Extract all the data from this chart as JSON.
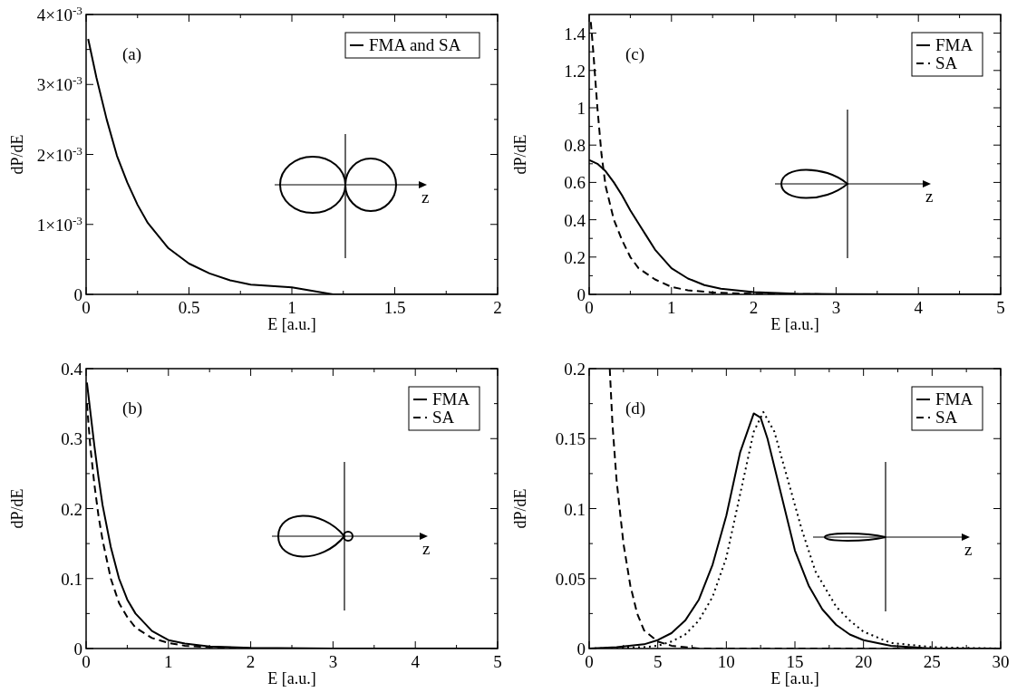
{
  "chart_data": [
    {
      "type": "line",
      "xlabel": "E [a.u.]",
      "ylabel": "dP/dE",
      "legend": "top right",
      "annotations": [
        "(a)",
        "z"
      ],
      "xlim": [
        0,
        2
      ],
      "ylim": [
        0,
        0.004
      ],
      "xticks": [
        0,
        {
          "value": 0.25,
          "label": null
        },
        0.5,
        {
          "value": 0.75,
          "label": null
        },
        1,
        {
          "value": 1.25,
          "label": null
        },
        1.5,
        {
          "value": 1.75,
          "label": null
        },
        2
      ],
      "yticks": [
        0,
        {
          "value": 0.0005,
          "label": null
        },
        {
          "value": 0.001,
          "label": "1×10$^{-3}$"
        },
        {
          "value": 0.0015,
          "label": null
        },
        {
          "value": 0.002,
          "label": "2×10$^{-3}$"
        },
        {
          "value": 0.0025,
          "label": null
        },
        {
          "value": 0.003,
          "label": "3×10$^{-3}$"
        },
        {
          "value": 0.0035,
          "label": null
        },
        {
          "value": 0.004,
          "label": "4×10$^{-3}$"
        }
      ],
      "series": [
        {
          "name": "FMA and SA",
          "color": "#000000",
          "line_style": "solid",
          "x": [
            0.01,
            0.05,
            0.1,
            0.15,
            0.2,
            0.25,
            0.3,
            0.4,
            0.5,
            0.6,
            0.7,
            0.8,
            1.0,
            1.2,
            1.5,
            2
          ],
          "values": [
            0.00365,
            0.0031,
            0.0025,
            0.00198,
            0.0016,
            0.00128,
            0.00102,
            0.00066,
            0.00044,
            0.0003,
            0.0002,
            0.00014,
            0.0001,
            0,
            0,
            0
          ]
        }
      ]
    },
    {
      "type": "line",
      "xlabel": "E [a.u.]",
      "ylabel": "dP/dE",
      "legend": "top right",
      "annotations": [
        "(c)",
        "z"
      ],
      "xlim": [
        0,
        5
      ],
      "ylim": [
        0,
        1.5
      ],
      "xticks": [
        0,
        {
          "value": 0.5,
          "label": null
        },
        1,
        {
          "value": 1.5,
          "label": null
        },
        2,
        {
          "value": 2.5,
          "label": null
        },
        3,
        {
          "value": 3.5,
          "label": null
        },
        4,
        {
          "value": 4.5,
          "label": null
        },
        5
      ],
      "yticks": [
        0,
        {
          "value": 0.1,
          "label": null
        },
        0.2,
        {
          "value": 0.3,
          "label": null
        },
        0.4,
        {
          "value": 0.5,
          "label": null
        },
        0.6,
        {
          "value": 0.7,
          "label": null
        },
        0.8,
        {
          "value": 0.9,
          "label": null
        },
        1,
        {
          "value": 1.1,
          "label": null
        },
        1.2,
        {
          "value": 1.3,
          "label": null
        },
        1.4
      ],
      "series": [
        {
          "name": "FMA",
          "color": "#000000",
          "line_style": "solid",
          "x": [
            0,
            0.1,
            0.2,
            0.3,
            0.4,
            0.5,
            0.6,
            0.7,
            0.8,
            1.0,
            1.2,
            1.4,
            1.6,
            2,
            2.5,
            3,
            5
          ],
          "values": [
            0.72,
            0.7,
            0.66,
            0.6,
            0.53,
            0.45,
            0.38,
            0.31,
            0.24,
            0.14,
            0.085,
            0.05,
            0.03,
            0.012,
            0.004,
            0.001,
            0
          ]
        },
        {
          "name": "SA",
          "color": "#000000",
          "line_style": "dashed",
          "x": [
            0.02,
            0.05,
            0.1,
            0.15,
            0.2,
            0.3,
            0.4,
            0.5,
            0.6,
            0.8,
            1,
            1.2,
            1.5,
            2,
            3,
            5
          ],
          "values": [
            1.46,
            1.3,
            1.0,
            0.75,
            0.58,
            0.4,
            0.29,
            0.2,
            0.14,
            0.08,
            0.04,
            0.022,
            0.01,
            0.003,
            0,
            0
          ]
        }
      ]
    },
    {
      "type": "line",
      "xlabel": "E [a.u.]",
      "ylabel": "dP/dE",
      "legend": "top right",
      "annotations": [
        "(b)",
        "z"
      ],
      "xlim": [
        0,
        5
      ],
      "ylim": [
        0,
        0.4
      ],
      "xticks": [
        0,
        {
          "value": 0.5,
          "label": null
        },
        1,
        {
          "value": 1.5,
          "label": null
        },
        2,
        {
          "value": 2.5,
          "label": null
        },
        3,
        {
          "value": 3.5,
          "label": null
        },
        4,
        {
          "value": 4.5,
          "label": null
        },
        5
      ],
      "yticks": [
        0,
        {
          "value": 0.05,
          "label": null
        },
        0.1,
        {
          "value": 0.15,
          "label": null
        },
        0.2,
        {
          "value": 0.25,
          "label": null
        },
        0.3,
        {
          "value": 0.35,
          "label": null
        },
        0.4
      ],
      "series": [
        {
          "name": "FMA",
          "color": "#000000",
          "line_style": "solid",
          "x": [
            0.01,
            0.05,
            0.1,
            0.15,
            0.2,
            0.3,
            0.4,
            0.5,
            0.6,
            0.8,
            1,
            1.2,
            1.5,
            2,
            3,
            5
          ],
          "values": [
            0.38,
            0.34,
            0.29,
            0.245,
            0.205,
            0.145,
            0.1,
            0.07,
            0.05,
            0.025,
            0.012,
            0.007,
            0.003,
            0.001,
            0,
            0
          ]
        },
        {
          "name": "SA",
          "color": "#000000",
          "line_style": "dashed",
          "x": [
            0.01,
            0.05,
            0.1,
            0.15,
            0.2,
            0.3,
            0.4,
            0.5,
            0.6,
            0.8,
            1,
            1.2,
            1.5,
            2,
            5
          ],
          "values": [
            0.35,
            0.29,
            0.235,
            0.19,
            0.155,
            0.1,
            0.065,
            0.045,
            0.03,
            0.015,
            0.008,
            0.004,
            0.002,
            0,
            0
          ]
        }
      ]
    },
    {
      "type": "line",
      "xlabel": "E [a.u.]",
      "ylabel": "dP/dE",
      "legend": "top right",
      "annotations": [
        "(d)",
        "z"
      ],
      "xlim": [
        0,
        30
      ],
      "ylim": [
        0,
        0.2
      ],
      "xticks": [
        0,
        {
          "value": 2.5,
          "label": null
        },
        5,
        {
          "value": 7.5,
          "label": null
        },
        10,
        {
          "value": 12.5,
          "label": null
        },
        15,
        {
          "value": 17.5,
          "label": null
        },
        20,
        {
          "value": 22.5,
          "label": null
        },
        25,
        {
          "value": 27.5,
          "label": null
        },
        30
      ],
      "yticks": [
        0,
        {
          "value": 0.025,
          "label": null
        },
        0.05,
        {
          "value": 0.075,
          "label": null
        },
        0.1,
        {
          "value": 0.125,
          "label": null
        },
        0.15,
        {
          "value": 0.175,
          "label": null
        },
        0.2
      ],
      "series": [
        {
          "name": "FMA",
          "color": "#000000",
          "line_style": "solid",
          "x": [
            0,
            2,
            4,
            5,
            6,
            7,
            8,
            9,
            10,
            11,
            12,
            12.5,
            13,
            14,
            15,
            16,
            17,
            18,
            19,
            20,
            22,
            25,
            30
          ],
          "values": [
            0,
            0.001,
            0.003,
            0.006,
            0.011,
            0.02,
            0.035,
            0.06,
            0.095,
            0.14,
            0.168,
            0.165,
            0.15,
            0.11,
            0.07,
            0.045,
            0.028,
            0.017,
            0.01,
            0.006,
            0.002,
            0,
            0
          ]
        },
        {
          "name": "SA",
          "color": "#000000",
          "line_style": "dashed",
          "x": [
            1.5,
            1.7,
            2,
            2.5,
            3,
            3.5,
            4,
            5,
            6,
            8,
            30
          ],
          "values": [
            0.2,
            0.16,
            0.12,
            0.075,
            0.045,
            0.025,
            0.013,
            0.005,
            0.002,
            0,
            0
          ]
        },
        {
          "color": "#000000",
          "line_style": "dotted",
          "x": [
            0,
            4,
            5,
            6,
            7,
            8,
            9,
            10,
            11,
            12,
            12.7,
            13.5,
            14.5,
            15.5,
            16.5,
            18,
            19,
            20,
            22,
            25,
            30
          ],
          "values": [
            0,
            0.001,
            0.002,
            0.005,
            0.01,
            0.02,
            0.037,
            0.065,
            0.11,
            0.155,
            0.169,
            0.155,
            0.12,
            0.085,
            0.055,
            0.03,
            0.02,
            0.012,
            0.004,
            0.001,
            0
          ]
        }
      ]
    }
  ]
}
